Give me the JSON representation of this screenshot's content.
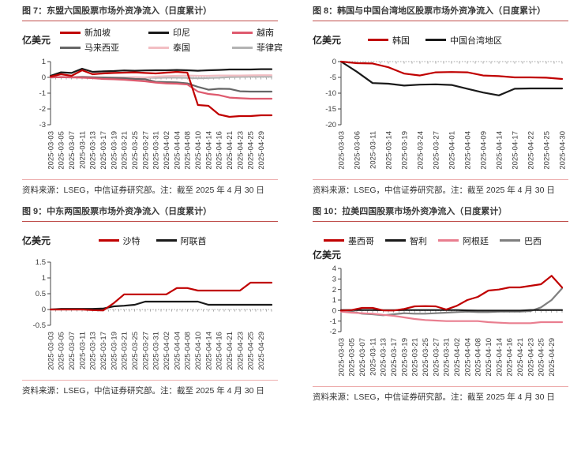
{
  "chart_data": [
    {
      "figure_label": "图 7",
      "title": "图 7：东盟六国股票市场外资净流入（日度累计）",
      "type": "line",
      "unit_label": "亿美元",
      "source_note": "资料来源：LSEG，中信证券研究部。注：截至 2025 年 4 月 30 日",
      "ylim": [
        -3,
        1
      ],
      "y_ticks": [
        1,
        0,
        -1,
        -2,
        -3
      ],
      "grid": false,
      "legend_position": "top",
      "x_tick_labels": [
        "2025-03-03",
        "2025-03-05",
        "2025-03-07",
        "2025-03-11",
        "2025-03-13",
        "2025-03-17",
        "2025-03-19",
        "2025-03-21",
        "2025-03-25",
        "2025-03-27",
        "2025-03-31",
        "2025-04-02",
        "2025-04-04",
        "2025-04-08",
        "2025-04-10",
        "2025-04-14",
        "2025-04-16",
        "2025-04-21",
        "2025-04-23",
        "2025-04-25",
        "2025-04-29"
      ],
      "series": [
        {
          "name": "新加坡",
          "color": "#C00000",
          "values": [
            0.05,
            0.2,
            0.1,
            0.45,
            0.2,
            0.25,
            0.28,
            0.3,
            0.32,
            0.28,
            0.25,
            0.3,
            0.35,
            0.3,
            -1.75,
            -1.8,
            -2.35,
            -2.5,
            -2.45,
            -2.45,
            -2.4,
            -2.4
          ]
        },
        {
          "name": "印尼",
          "color": "#1A1A1A",
          "values": [
            0.1,
            0.32,
            0.28,
            0.55,
            0.35,
            0.38,
            0.4,
            0.44,
            0.42,
            0.44,
            0.45,
            0.45,
            0.47,
            0.45,
            0.42,
            0.45,
            0.47,
            0.5,
            0.5,
            0.5,
            0.52,
            0.52
          ]
        },
        {
          "name": "越南",
          "color": "#DE5A6E",
          "values": [
            0,
            0.02,
            0,
            -0.02,
            -0.05,
            -0.1,
            -0.12,
            -0.15,
            -0.2,
            -0.25,
            -0.33,
            -0.38,
            -0.4,
            -0.45,
            -0.9,
            -1.05,
            -1.12,
            -1.28,
            -1.32,
            -1.35,
            -1.35,
            -1.35
          ]
        },
        {
          "name": "马来西亚",
          "color": "#666666",
          "values": [
            0,
            0.01,
            0,
            0.02,
            0,
            -0.02,
            -0.03,
            -0.05,
            -0.1,
            -0.12,
            -0.28,
            -0.3,
            -0.32,
            -0.38,
            -0.6,
            -0.78,
            -0.72,
            -0.73,
            -0.88,
            -0.9,
            -0.9,
            -0.9
          ]
        },
        {
          "name": "泰国",
          "color": "#F2BEC3",
          "values": [
            0,
            0.03,
            0.02,
            0.05,
            0.02,
            0,
            0,
            0,
            0.02,
            0,
            0.05,
            0.08,
            0.1,
            0.12,
            0.1,
            0.1,
            0.12,
            0.12,
            0.12,
            0.13,
            0.14,
            0.14
          ]
        },
        {
          "name": "菲律宾",
          "color": "#B3B3B3",
          "values": [
            0,
            0.01,
            0,
            0.02,
            0,
            0,
            -0.01,
            0,
            -0.01,
            -0.02,
            -0.03,
            -0.02,
            -0.02,
            -0.03,
            -0.06,
            -0.04,
            -0.02,
            0.02,
            0.03,
            0.04,
            0.04,
            0.04
          ]
        }
      ]
    },
    {
      "figure_label": "图 8",
      "title": "图 8：韩国与中国台湾地区股票市场外资净流入（日度累计）",
      "type": "line",
      "unit_label": "亿美元",
      "source_note": "资料来源：LSEG，中信证券研究部。注：截至 2025 年 4 月 30 日",
      "ylim": [
        -20,
        0
      ],
      "y_ticks": [
        0,
        -5,
        -10,
        -15,
        -20
      ],
      "grid": false,
      "legend_position": "top",
      "x_tick_labels": [
        "2025-03-03",
        "2025-03-06",
        "2025-03-11",
        "2025-03-14",
        "2025-03-19",
        "2025-03-24",
        "2025-03-27",
        "2025-04-01",
        "2025-04-04",
        "2025-04-09",
        "2025-04-14",
        "2025-04-17",
        "2025-04-22",
        "2025-04-25",
        "2025-04-30"
      ],
      "series": [
        {
          "name": "韩国",
          "color": "#C00000",
          "values": [
            0,
            -0.5,
            -0.6,
            -1.8,
            -3.8,
            -4.4,
            -3.4,
            -3.3,
            -3.4,
            -4.4,
            -4.6,
            -5.0,
            -5.0,
            -5.1,
            -5.5
          ]
        },
        {
          "name": "中国台湾地区",
          "color": "#1A1A1A",
          "values": [
            0,
            -3.2,
            -6.8,
            -7.0,
            -7.6,
            -7.3,
            -7.2,
            -7.4,
            -8.6,
            -9.8,
            -10.7,
            -8.6,
            -8.5,
            -8.5,
            -8.5
          ]
        }
      ]
    },
    {
      "figure_label": "图 9",
      "title": "图 9：中东两国股票市场外资净流入（日度累计）",
      "type": "line",
      "unit_label": "亿美元",
      "source_note": "资料来源：LSEG，中信证券研究部。注：截至 2025 年 4 月 30 日",
      "ylim": [
        -0.5,
        1.5
      ],
      "y_ticks": [
        1.5,
        1,
        0.5,
        0,
        -0.5
      ],
      "grid": false,
      "legend_position": "top",
      "x_tick_labels": [
        "2025-03-03",
        "2025-03-05",
        "2025-03-07",
        "2025-03-11",
        "2025-03-13",
        "2025-03-17",
        "2025-03-19",
        "2025-03-21",
        "2025-03-25",
        "2025-03-27",
        "2025-03-31",
        "2025-04-02",
        "2025-04-04",
        "2025-04-08",
        "2025-04-10",
        "2025-04-14",
        "2025-04-16",
        "2025-04-21",
        "2025-04-23",
        "2025-04-25",
        "2025-04-29"
      ],
      "series": [
        {
          "name": "沙特",
          "color": "#C00000",
          "values": [
            0,
            0,
            0,
            0,
            -0.02,
            -0.03,
            0.2,
            0.48,
            0.48,
            0.48,
            0.48,
            0.48,
            0.68,
            0.68,
            0.6,
            0.6,
            0.6,
            0.6,
            0.6,
            0.85,
            0.85,
            0.85
          ]
        },
        {
          "name": "阿联酋",
          "color": "#1A1A1A",
          "values": [
            0,
            0.02,
            0.02,
            0.02,
            0.02,
            0.03,
            0.1,
            0.12,
            0.15,
            0.25,
            0.25,
            0.25,
            0.25,
            0.25,
            0.25,
            0.15,
            0.15,
            0.15,
            0.15,
            0.15,
            0.15,
            0.15
          ]
        }
      ]
    },
    {
      "figure_label": "图 10",
      "title": "图 10：拉美四国股票市场外资净流入（日度累计）",
      "type": "line",
      "unit_label": "亿美元",
      "source_note": "资料来源：LSEG，中信证券研究部。注：截至 2025 年 4 月 30 日",
      "ylim": [
        -2,
        4
      ],
      "y_ticks": [
        4,
        3,
        2,
        1,
        0,
        -1,
        -2
      ],
      "grid": false,
      "legend_position": "top",
      "x_tick_labels": [
        "2025-03-03",
        "2025-03-05",
        "2025-03-07",
        "2025-03-11",
        "2025-03-13",
        "2025-03-17",
        "2025-03-19",
        "2025-03-21",
        "2025-03-25",
        "2025-03-27",
        "2025-03-31",
        "2025-04-02",
        "2025-04-04",
        "2025-04-08",
        "2025-04-10",
        "2025-04-14",
        "2025-04-16",
        "2025-04-21",
        "2025-04-23",
        "2025-04-25",
        "2025-04-29"
      ],
      "series": [
        {
          "name": "墨西哥",
          "color": "#C00000",
          "values": [
            0,
            0.05,
            0.25,
            0.25,
            0.02,
            0,
            0.15,
            0.4,
            0.42,
            0.4,
            0.1,
            0.45,
            1.0,
            1.3,
            1.9,
            2.0,
            2.2,
            2.2,
            2.35,
            2.5,
            3.3,
            2.2
          ]
        },
        {
          "name": "智利",
          "color": "#1A1A1A",
          "values": [
            0.05,
            0.05,
            0.05,
            0.05,
            0.03,
            0.03,
            0.05,
            0.05,
            0.05,
            0.05,
            0.05,
            0.05,
            0.02,
            0,
            0,
            0,
            0,
            0,
            0.05,
            0.05,
            0.05,
            0.05
          ]
        },
        {
          "name": "阿根廷",
          "color": "#E97E8F",
          "values": [
            -0.1,
            -0.2,
            -0.25,
            -0.3,
            -0.4,
            -0.5,
            -0.65,
            -0.8,
            -0.9,
            -0.95,
            -1.0,
            -1.0,
            -1.0,
            -1.0,
            -1.1,
            -1.15,
            -1.2,
            -1.2,
            -1.2,
            -1.1,
            -1.1,
            -1.1
          ]
        },
        {
          "name": "巴西",
          "color": "#7F7F7F",
          "values": [
            0,
            -0.1,
            -0.3,
            -0.35,
            -0.45,
            -0.35,
            -0.25,
            -0.3,
            -0.3,
            -0.25,
            -0.2,
            -0.15,
            -0.1,
            -0.15,
            -0.15,
            -0.1,
            -0.1,
            -0.1,
            -0.05,
            0.3,
            1.0,
            2.1
          ]
        }
      ]
    }
  ],
  "style": {
    "accent_red": "#C00000",
    "title_rule_color": "#C0504D",
    "source_rule_color": "#EDADAD"
  }
}
